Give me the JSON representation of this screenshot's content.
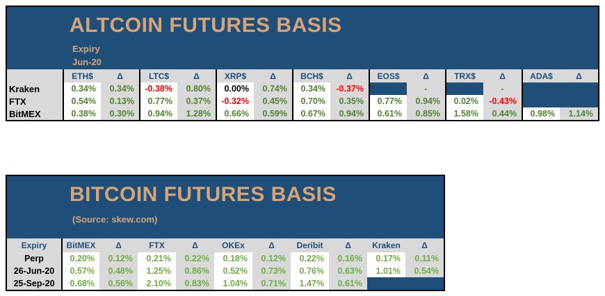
{
  "colors": {
    "navy": "#1F4E79",
    "tan": "#D5A478",
    "gray": "#D9D9D9",
    "green_dark": "#548235",
    "green_light": "#70AD47",
    "red": "#FF0000",
    "black": "#000000"
  },
  "altcoin": {
    "title": "ALTCOIN FUTURES BASIS",
    "expiry_label": "Expiry",
    "expiry_month": "Jun-20",
    "delta_symbol": "Δ",
    "columns": [
      "ETH$",
      "LTC$",
      "XRP$",
      "BCH$",
      "EOS$",
      "TRX$",
      "ADA$"
    ],
    "rows": [
      {
        "label": "Kraken",
        "cells": [
          {
            "value": "0.34%",
            "value_color": "green",
            "delta": "0.34%",
            "delta_color": "green"
          },
          {
            "value": "-0.38%",
            "value_color": "red",
            "delta": "0.80%",
            "delta_color": "green"
          },
          {
            "value": "0.00%",
            "value_color": "black",
            "delta": "0.74%",
            "delta_color": "green"
          },
          {
            "value": "0.34%",
            "value_color": "green",
            "delta": "-0.37%",
            "delta_color": "red"
          },
          {
            "value": "",
            "value_filled": true,
            "delta": "-",
            "delta_color": "green"
          },
          {
            "value": "",
            "value_filled": true,
            "delta": "-",
            "delta_color": "green"
          },
          {
            "value": "",
            "value_filled": true,
            "delta": "",
            "delta_filled": true
          }
        ]
      },
      {
        "label": "FTX",
        "cells": [
          {
            "value": "0.54%",
            "value_color": "green",
            "delta": "0.13%",
            "delta_color": "green"
          },
          {
            "value": "0.77%",
            "value_color": "green",
            "delta": "0.37%",
            "delta_color": "green"
          },
          {
            "value": "-0.32%",
            "value_color": "red",
            "delta": "0.45%",
            "delta_color": "green"
          },
          {
            "value": "0.70%",
            "value_color": "green",
            "delta": "0.35%",
            "delta_color": "green"
          },
          {
            "value": "0.77%",
            "value_color": "green",
            "delta": "0.94%",
            "delta_color": "green"
          },
          {
            "value": "0.02%",
            "value_color": "green",
            "delta": "-0.43%",
            "delta_color": "red"
          },
          {
            "value": "",
            "value_filled": true,
            "delta": "",
            "delta_filled": true
          }
        ]
      },
      {
        "label": "BitMEX",
        "cells": [
          {
            "value": "0.38%",
            "value_color": "green",
            "delta": "0.30%",
            "delta_color": "green"
          },
          {
            "value": "0.94%",
            "value_color": "green",
            "delta": "1.28%",
            "delta_color": "green"
          },
          {
            "value": "0.66%",
            "value_color": "green",
            "delta": "0.59%",
            "delta_color": "green"
          },
          {
            "value": "0.67%",
            "value_color": "green",
            "delta": "0.94%",
            "delta_color": "green"
          },
          {
            "value": "0.61%",
            "value_color": "green",
            "delta": "0.85%",
            "delta_color": "green"
          },
          {
            "value": "1.58%",
            "value_color": "green",
            "delta": "0.44%",
            "delta_color": "green"
          },
          {
            "value": "0.98%",
            "value_color": "green",
            "delta": "1.14%",
            "delta_color": "green"
          }
        ]
      }
    ]
  },
  "bitcoin": {
    "title": "BITCOIN FUTURES BASIS",
    "source": "(Source: skew.com)",
    "expiry_header": "Expiry",
    "delta_symbol": "Δ",
    "columns": [
      "BitMEX",
      "FTX",
      "OKEx",
      "Deribit",
      "Kraken"
    ],
    "rows": [
      {
        "label": "Perp",
        "cells": [
          {
            "value": "0.20%",
            "value_color": "green",
            "delta": "0.12%",
            "delta_color": "green"
          },
          {
            "value": "0.21%",
            "value_color": "green",
            "delta": "0.22%",
            "delta_color": "green"
          },
          {
            "value": "0.18%",
            "value_color": "green",
            "delta": "0.12%",
            "delta_color": "green"
          },
          {
            "value": "0.22%",
            "value_color": "green",
            "delta": "0.16%",
            "delta_color": "green"
          },
          {
            "value": "0.17%",
            "value_color": "green",
            "delta": "0.11%",
            "delta_color": "green"
          }
        ]
      },
      {
        "label": "26-Jun-20",
        "cells": [
          {
            "value": "0.57%",
            "value_color": "green",
            "delta": "0.48%",
            "delta_color": "green"
          },
          {
            "value": "1.25%",
            "value_color": "green",
            "delta": "0.86%",
            "delta_color": "green"
          },
          {
            "value": "0.52%",
            "value_color": "green",
            "delta": "0.73%",
            "delta_color": "green"
          },
          {
            "value": "0.76%",
            "value_color": "green",
            "delta": "0.63%",
            "delta_color": "green"
          },
          {
            "value": "1.01%",
            "value_color": "green",
            "delta": "0.54%",
            "delta_color": "green"
          }
        ]
      },
      {
        "label": "25-Sep-20",
        "cells": [
          {
            "value": "0.68%",
            "value_color": "green",
            "delta": "0.56%",
            "delta_color": "green"
          },
          {
            "value": "2.10%",
            "value_color": "green",
            "delta": "0.83%",
            "delta_color": "green"
          },
          {
            "value": "1.04%",
            "value_color": "green",
            "delta": "0.71%",
            "delta_color": "green"
          },
          {
            "value": "1.47%",
            "value_color": "green",
            "delta": "0.61%",
            "delta_color": "green"
          },
          {
            "value": "",
            "value_filled": true,
            "delta": "",
            "delta_filled": true
          }
        ]
      }
    ]
  }
}
